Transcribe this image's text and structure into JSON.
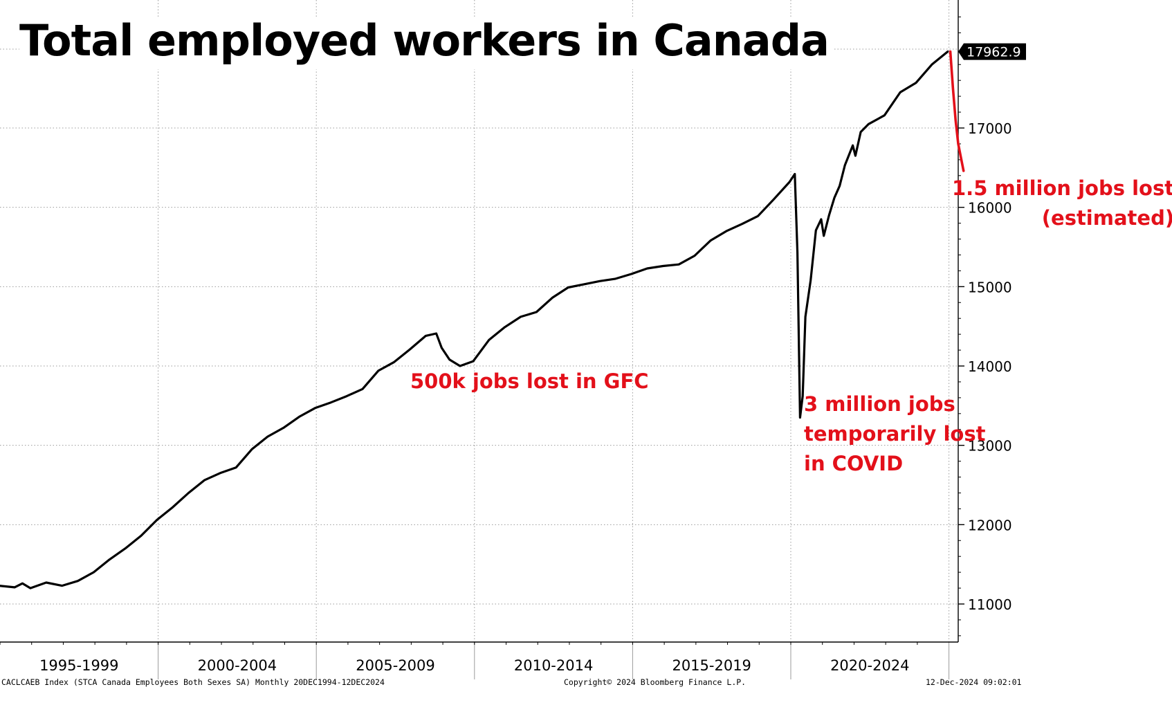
{
  "title": "Total employed workers in Canada",
  "chart_data": {
    "type": "line",
    "ylim": [
      10500,
      18500
    ],
    "yticks": [
      "11000",
      "12000",
      "13000",
      "14000",
      "15000",
      "16000",
      "17000"
    ],
    "x_groups": [
      "1995-1999",
      "2000-2004",
      "2005-2009",
      "2010-2014",
      "2015-2019",
      "2020-2024"
    ],
    "grid": true,
    "last_value_label": "17962.9",
    "series": [
      {
        "color": "#000000",
        "points": [
          [
            "1994-12",
            11230
          ],
          [
            "1995-06",
            11210
          ],
          [
            "1995-09",
            11260
          ],
          [
            "1995-12",
            11200
          ],
          [
            "1996-06",
            11270
          ],
          [
            "1996-12",
            11230
          ],
          [
            "1997-06",
            11290
          ],
          [
            "1997-12",
            11400
          ],
          [
            "1998-06",
            11560
          ],
          [
            "1998-12",
            11700
          ],
          [
            "1999-06",
            11860
          ],
          [
            "1999-12",
            12060
          ],
          [
            "2000-06",
            12220
          ],
          [
            "2000-12",
            12400
          ],
          [
            "2001-06",
            12560
          ],
          [
            "2001-12",
            12650
          ],
          [
            "2002-06",
            12720
          ],
          [
            "2002-12",
            12950
          ],
          [
            "2003-06",
            13110
          ],
          [
            "2003-12",
            13220
          ],
          [
            "2004-06",
            13360
          ],
          [
            "2004-12",
            13470
          ],
          [
            "2005-06",
            13540
          ],
          [
            "2005-12",
            13620
          ],
          [
            "2006-06",
            13710
          ],
          [
            "2006-12",
            13940
          ],
          [
            "2007-06",
            14050
          ],
          [
            "2007-12",
            14210
          ],
          [
            "2008-06",
            14380
          ],
          [
            "2008-10",
            14410
          ],
          [
            "2008-12",
            14230
          ],
          [
            "2009-03",
            14080
          ],
          [
            "2009-07",
            14000
          ],
          [
            "2009-12",
            14060
          ],
          [
            "2010-06",
            14330
          ],
          [
            "2010-12",
            14490
          ],
          [
            "2011-06",
            14620
          ],
          [
            "2011-12",
            14680
          ],
          [
            "2012-06",
            14860
          ],
          [
            "2012-12",
            14990
          ],
          [
            "2013-06",
            15030
          ],
          [
            "2013-12",
            15070
          ],
          [
            "2014-06",
            15100
          ],
          [
            "2014-12",
            15160
          ],
          [
            "2015-06",
            15230
          ],
          [
            "2015-12",
            15260
          ],
          [
            "2016-06",
            15280
          ],
          [
            "2016-12",
            15390
          ],
          [
            "2017-06",
            15580
          ],
          [
            "2017-12",
            15700
          ],
          [
            "2018-06",
            15790
          ],
          [
            "2018-12",
            15890
          ],
          [
            "2019-06",
            16100
          ],
          [
            "2019-12",
            16320
          ],
          [
            "2020-02",
            16420
          ],
          [
            "2020-03",
            15430
          ],
          [
            "2020-04",
            13350
          ],
          [
            "2020-05",
            13620
          ],
          [
            "2020-06",
            14620
          ],
          [
            "2020-08",
            15080
          ],
          [
            "2020-10",
            15710
          ],
          [
            "2020-12",
            15850
          ],
          [
            "2021-01",
            15640
          ],
          [
            "2021-03",
            15900
          ],
          [
            "2021-05",
            16120
          ],
          [
            "2021-07",
            16270
          ],
          [
            "2021-09",
            16530
          ],
          [
            "2021-12",
            16780
          ],
          [
            "2022-01",
            16650
          ],
          [
            "2022-03",
            16950
          ],
          [
            "2022-06",
            17050
          ],
          [
            "2022-12",
            17160
          ],
          [
            "2023-06",
            17450
          ],
          [
            "2023-12",
            17570
          ],
          [
            "2024-06",
            17800
          ],
          [
            "2024-12",
            17962.9
          ]
        ]
      },
      {
        "color": "#e3101a",
        "points": [
          [
            "2025-01",
            17962.9
          ],
          [
            "2025-02",
            17500
          ],
          [
            "2025-03",
            17100
          ],
          [
            "2025-04",
            16800
          ],
          [
            "2025-06",
            16460
          ]
        ]
      }
    ],
    "annotations": {
      "gfc": "500k jobs lost in GFC",
      "covid": "3 million jobs\ntemporarily lost\nin COVID",
      "estimate": "1.5 million jobs lost\n(estimated)"
    }
  },
  "footer": {
    "source": "CACLCAEB Index (STCA Canada Employees Both Sexes SA)  Monthly 20DEC1994-12DEC2024",
    "copyright": "Copyright© 2024 Bloomberg Finance L.P.",
    "timestamp": "12-Dec-2024 09:02:01"
  }
}
